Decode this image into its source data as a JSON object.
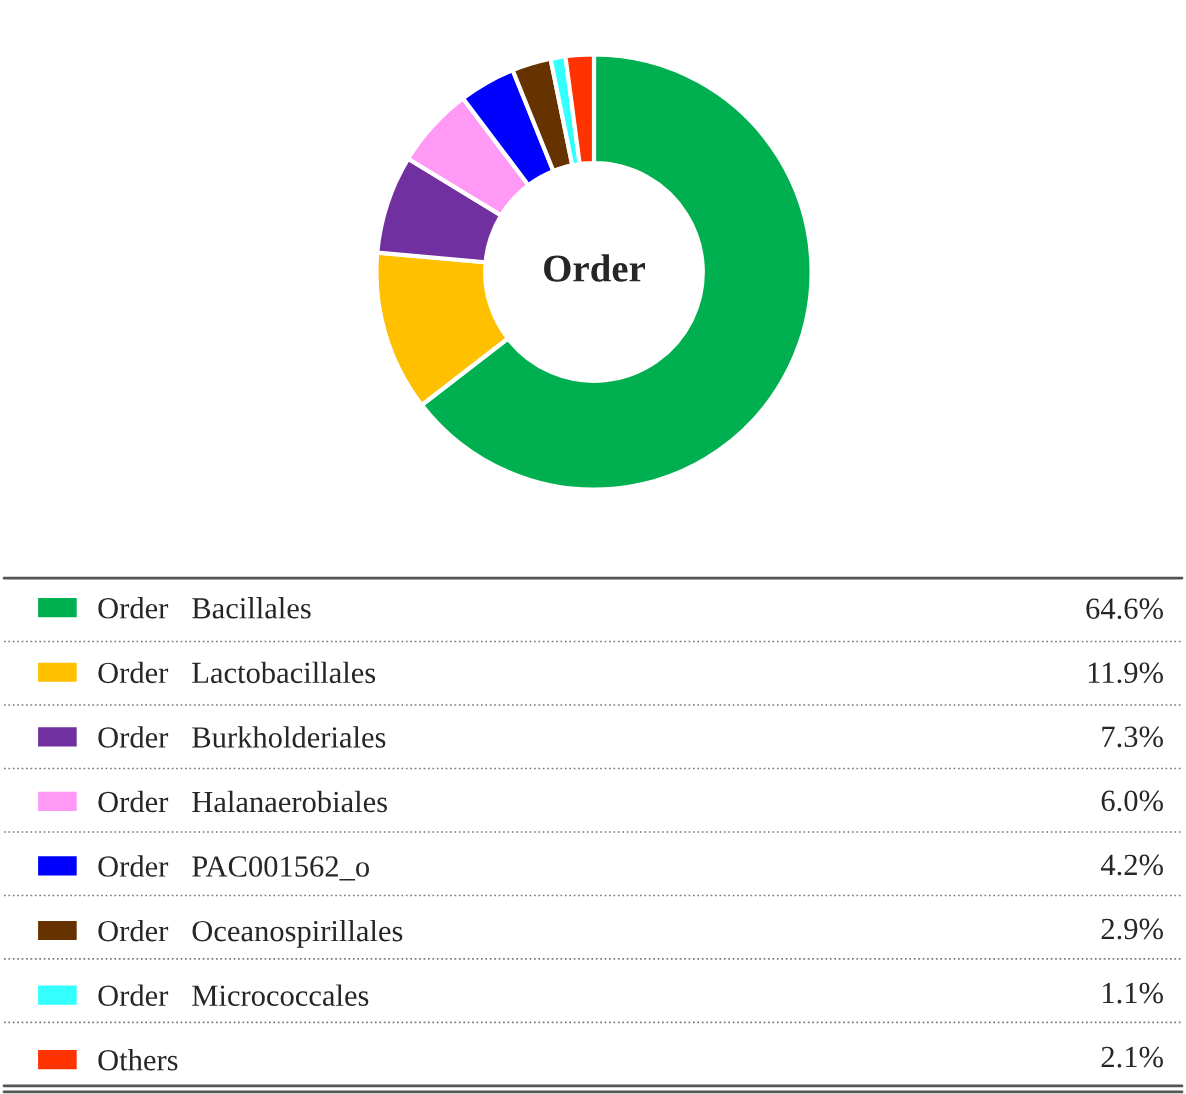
{
  "chart_data": {
    "type": "donut",
    "title": "Order",
    "categories": [
      "Order   Bacillales",
      "Order   Lactobacillales",
      "Order   Burkholderiales",
      "Order   Halanaerobiales",
      "Order   PAC001562_o",
      "Order   Oceanospirillales",
      "Order   Micrococcales",
      "Others"
    ],
    "values": [
      64.6,
      11.9,
      7.3,
      6.0,
      4.2,
      2.9,
      1.1,
      2.1
    ],
    "colors": [
      "#00b050",
      "#ffc000",
      "#7030a0",
      "#ff99f5",
      "#0000ff",
      "#663300",
      "#33ffff",
      "#ff3300"
    ],
    "value_labels": [
      "64.6%",
      "11.9%",
      "7.3%",
      "6.0%",
      "4.2%",
      "2.9%",
      "1.1%",
      "2.1%"
    ],
    "legend": "bottom"
  }
}
